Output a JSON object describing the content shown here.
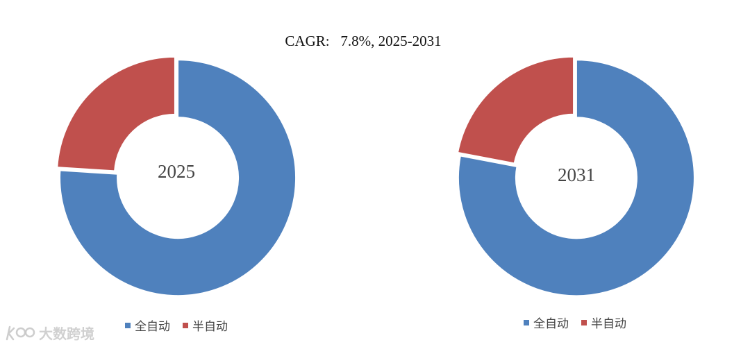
{
  "colors": {
    "full_auto": "#4F81BD",
    "semi_auto": "#C0504D"
  },
  "chart_data": [
    {
      "type": "pie",
      "title": "CAGR:   7.8%, 2025-2031",
      "center_label": "2025",
      "categories": [
        "全自动",
        "半自动"
      ],
      "values": [
        76,
        24
      ]
    },
    {
      "type": "pie",
      "title": "CAGR:   7.8%, 2025-2031",
      "center_label": "2031",
      "categories": [
        "全自动",
        "半自动"
      ],
      "values": [
        78,
        22
      ]
    }
  ],
  "title": "CAGR:   7.8%, 2025-2031",
  "legend": {
    "full_auto": "全自动",
    "semi_auto": "半自动"
  },
  "watermark": {
    "text": "大数跨境",
    "logo_icon": "k-logo-icon"
  }
}
